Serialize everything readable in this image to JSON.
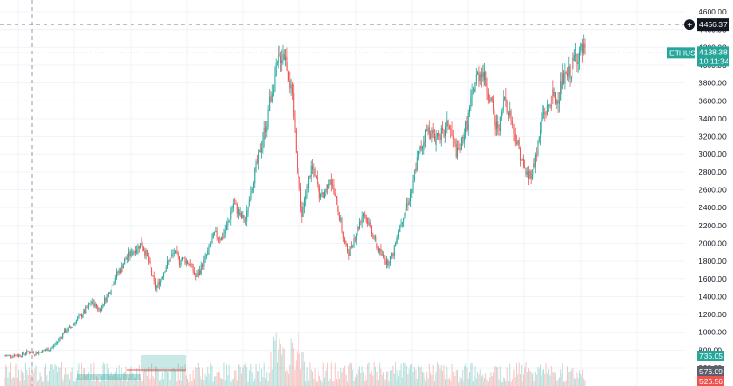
{
  "chart_data": {
    "type": "candlestick",
    "symbol": "ETHUSD",
    "last_price": "4138.38",
    "countdown": "10:11:34",
    "crosshair_price": "4456.37",
    "ylim": [
      500,
      4700
    ],
    "y_ticks": [
      "4600.00",
      "4400.00",
      "4200.00",
      "4000.00",
      "3800.00",
      "3600.00",
      "3400.00",
      "3200.00",
      "3000.00",
      "2800.00",
      "2600.00",
      "2400.00",
      "2200.00",
      "2000.00",
      "1800.00",
      "1600.00",
      "1400.00",
      "1200.00",
      "1000.00",
      "800.00",
      "600.00"
    ],
    "volume_tags": [
      "735.05",
      "576.09",
      "526.56"
    ],
    "close_path": [
      [
        0,
        735
      ],
      [
        8,
        740
      ],
      [
        14,
        745
      ],
      [
        20,
        780
      ],
      [
        26,
        760
      ],
      [
        32,
        790
      ],
      [
        38,
        810
      ],
      [
        44,
        880
      ],
      [
        50,
        1000
      ],
      [
        56,
        1050
      ],
      [
        62,
        1150
      ],
      [
        68,
        1230
      ],
      [
        74,
        1350
      ],
      [
        80,
        1250
      ],
      [
        86,
        1380
      ],
      [
        90,
        1500
      ],
      [
        95,
        1650
      ],
      [
        100,
        1750
      ],
      [
        104,
        1850
      ],
      [
        108,
        1900
      ],
      [
        112,
        1950
      ],
      [
        116,
        2000
      ],
      [
        120,
        1880
      ],
      [
        124,
        1700
      ],
      [
        128,
        1500
      ],
      [
        132,
        1580
      ],
      [
        136,
        1720
      ],
      [
        140,
        1820
      ],
      [
        144,
        1900
      ],
      [
        148,
        1800
      ],
      [
        152,
        1820
      ],
      [
        158,
        1760
      ],
      [
        162,
        1620
      ],
      [
        166,
        1700
      ],
      [
        172,
        1900
      ],
      [
        178,
        2100
      ],
      [
        184,
        2050
      ],
      [
        190,
        2250
      ],
      [
        194,
        2450
      ],
      [
        200,
        2300
      ],
      [
        204,
        2250
      ],
      [
        208,
        2550
      ],
      [
        212,
        2800
      ],
      [
        216,
        3000
      ],
      [
        220,
        3250
      ],
      [
        224,
        3500
      ],
      [
        228,
        3800
      ],
      [
        232,
        4050
      ],
      [
        236,
        4150
      ],
      [
        240,
        4000
      ],
      [
        244,
        3600
      ],
      [
        248,
        2900
      ],
      [
        252,
        2300
      ],
      [
        256,
        2600
      ],
      [
        260,
        2850
      ],
      [
        264,
        2700
      ],
      [
        268,
        2500
      ],
      [
        272,
        2600
      ],
      [
        276,
        2750
      ],
      [
        280,
        2500
      ],
      [
        284,
        2300
      ],
      [
        288,
        2000
      ],
      [
        292,
        1900
      ],
      [
        296,
        2050
      ],
      [
        300,
        2200
      ],
      [
        304,
        2350
      ],
      [
        308,
        2250
      ],
      [
        312,
        2100
      ],
      [
        316,
        1950
      ],
      [
        320,
        1850
      ],
      [
        324,
        1780
      ],
      [
        328,
        1850
      ],
      [
        332,
        2050
      ],
      [
        336,
        2250
      ],
      [
        340,
        2400
      ],
      [
        344,
        2550
      ],
      [
        348,
        2800
      ],
      [
        352,
        3050
      ],
      [
        356,
        3200
      ],
      [
        360,
        3300
      ],
      [
        364,
        3150
      ],
      [
        368,
        3250
      ],
      [
        372,
        3200
      ],
      [
        376,
        3350
      ],
      [
        380,
        3150
      ],
      [
        384,
        3000
      ],
      [
        388,
        3150
      ],
      [
        392,
        3350
      ],
      [
        396,
        3650
      ],
      [
        400,
        3850
      ],
      [
        404,
        3950
      ],
      [
        408,
        3800
      ],
      [
        412,
        3600
      ],
      [
        416,
        3300
      ],
      [
        420,
        3350
      ],
      [
        424,
        3650
      ],
      [
        428,
        3450
      ],
      [
        432,
        3250
      ],
      [
        436,
        3050
      ],
      [
        440,
        2850
      ],
      [
        444,
        2750
      ],
      [
        448,
        2850
      ],
      [
        452,
        3100
      ],
      [
        456,
        3450
      ],
      [
        460,
        3500
      ],
      [
        464,
        3650
      ],
      [
        468,
        3600
      ],
      [
        472,
        3800
      ],
      [
        476,
        3850
      ],
      [
        480,
        3950
      ],
      [
        484,
        4100
      ],
      [
        488,
        4150
      ],
      [
        492,
        4138
      ]
    ],
    "colors": {
      "up": "#26a69a",
      "down": "#ef5350",
      "grid": "#f0f3fa",
      "crosshair": "#9598a1"
    }
  }
}
